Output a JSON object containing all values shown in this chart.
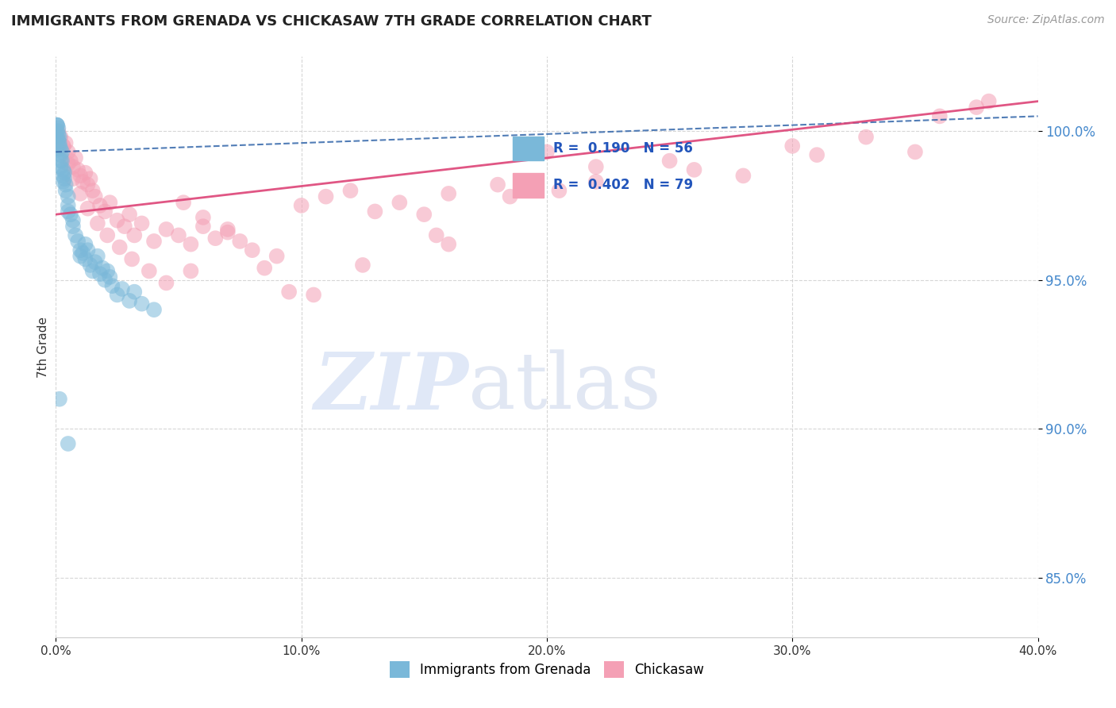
{
  "title": "IMMIGRANTS FROM GRENADA VS CHICKASAW 7TH GRADE CORRELATION CHART",
  "source_text": "Source: ZipAtlas.com",
  "ylabel": "7th Grade",
  "xlim": [
    0.0,
    40.0
  ],
  "ylim": [
    83.0,
    102.5
  ],
  "yticks": [
    85.0,
    90.0,
    95.0,
    100.0
  ],
  "xticks": [
    0.0,
    10.0,
    20.0,
    30.0,
    40.0
  ],
  "blue_color": "#7ab8d9",
  "pink_color": "#f4a0b5",
  "trend_blue_color": "#3366aa",
  "trend_pink_color": "#dd4477",
  "watermark_zip": "ZIP",
  "watermark_atlas": "atlas",
  "blue_scatter_x": [
    0.05,
    0.05,
    0.05,
    0.05,
    0.05,
    0.1,
    0.1,
    0.1,
    0.15,
    0.15,
    0.15,
    0.2,
    0.2,
    0.2,
    0.2,
    0.25,
    0.25,
    0.3,
    0.3,
    0.3,
    0.35,
    0.35,
    0.4,
    0.4,
    0.5,
    0.5,
    0.5,
    0.6,
    0.7,
    0.7,
    0.8,
    0.9,
    1.0,
    1.0,
    1.1,
    1.2,
    1.2,
    1.3,
    1.4,
    1.5,
    1.6,
    1.7,
    1.8,
    1.9,
    2.0,
    2.1,
    2.2,
    2.3,
    2.5,
    2.7,
    3.0,
    3.2,
    3.5,
    4.0,
    0.15,
    0.5
  ],
  "blue_scatter_y": [
    100.2,
    100.2,
    100.2,
    100.0,
    99.8,
    100.1,
    99.9,
    99.7,
    99.8,
    99.6,
    99.5,
    99.4,
    99.2,
    99.0,
    98.8,
    99.3,
    99.0,
    98.7,
    98.5,
    98.3,
    98.6,
    98.4,
    98.2,
    98.0,
    97.8,
    97.5,
    97.3,
    97.2,
    97.0,
    96.8,
    96.5,
    96.3,
    96.0,
    95.8,
    95.9,
    96.2,
    95.7,
    96.0,
    95.5,
    95.3,
    95.6,
    95.8,
    95.2,
    95.4,
    95.0,
    95.3,
    95.1,
    94.8,
    94.5,
    94.7,
    94.3,
    94.6,
    94.2,
    94.0,
    91.0,
    89.5
  ],
  "pink_scatter_x": [
    0.1,
    0.2,
    0.3,
    0.4,
    0.5,
    0.6,
    0.7,
    0.8,
    0.9,
    1.0,
    1.1,
    1.2,
    1.3,
    1.4,
    1.5,
    1.6,
    1.8,
    2.0,
    2.2,
    2.5,
    2.8,
    3.0,
    3.2,
    3.5,
    4.0,
    4.5,
    5.0,
    5.5,
    6.0,
    6.5,
    7.0,
    7.5,
    8.0,
    9.0,
    10.0,
    11.0,
    12.0,
    13.0,
    14.0,
    15.0,
    16.0,
    18.0,
    20.0,
    22.0,
    25.0,
    28.0,
    30.0,
    33.0,
    35.0,
    38.0,
    0.3,
    0.5,
    0.7,
    1.0,
    1.3,
    1.7,
    2.1,
    2.6,
    3.1,
    3.8,
    4.5,
    5.2,
    6.0,
    7.0,
    8.5,
    10.5,
    12.5,
    15.5,
    18.5,
    22.0,
    26.0,
    31.0,
    36.0,
    5.5,
    9.5,
    16.0,
    20.5,
    37.5
  ],
  "pink_scatter_y": [
    100.0,
    99.8,
    99.5,
    99.6,
    99.3,
    99.0,
    98.8,
    99.1,
    98.7,
    98.5,
    98.3,
    98.6,
    98.2,
    98.4,
    98.0,
    97.8,
    97.5,
    97.3,
    97.6,
    97.0,
    96.8,
    97.2,
    96.5,
    96.9,
    96.3,
    96.7,
    96.5,
    96.2,
    96.8,
    96.4,
    96.6,
    96.3,
    96.0,
    95.8,
    97.5,
    97.8,
    98.0,
    97.3,
    97.6,
    97.2,
    97.9,
    98.2,
    99.3,
    98.8,
    99.0,
    98.5,
    99.5,
    99.8,
    99.3,
    101.0,
    99.5,
    98.9,
    98.4,
    97.9,
    97.4,
    96.9,
    96.5,
    96.1,
    95.7,
    95.3,
    94.9,
    97.6,
    97.1,
    96.7,
    95.4,
    94.5,
    95.5,
    96.5,
    97.8,
    98.3,
    98.7,
    99.2,
    100.5,
    95.3,
    94.6,
    96.2,
    98.0,
    100.8
  ]
}
